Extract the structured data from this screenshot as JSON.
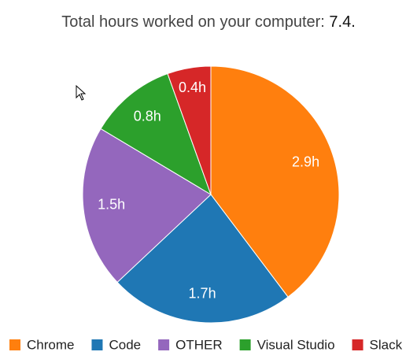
{
  "chart_data": {
    "type": "pie",
    "title": "Total hours worked on your computer:",
    "title_value": "7.4.",
    "categories": [
      "Chrome",
      "Code",
      "OTHER",
      "Visual Studio",
      "Slack"
    ],
    "values": [
      2.9,
      1.7,
      1.5,
      0.8,
      0.4
    ],
    "value_labels": [
      "2.9h",
      "1.7h",
      "1.5h",
      "0.8h",
      "0.4h"
    ],
    "colors": [
      "#ff7f0e",
      "#1f77b4",
      "#9467bd",
      "#2ca02c",
      "#d62728"
    ],
    "legend": "bottom"
  }
}
